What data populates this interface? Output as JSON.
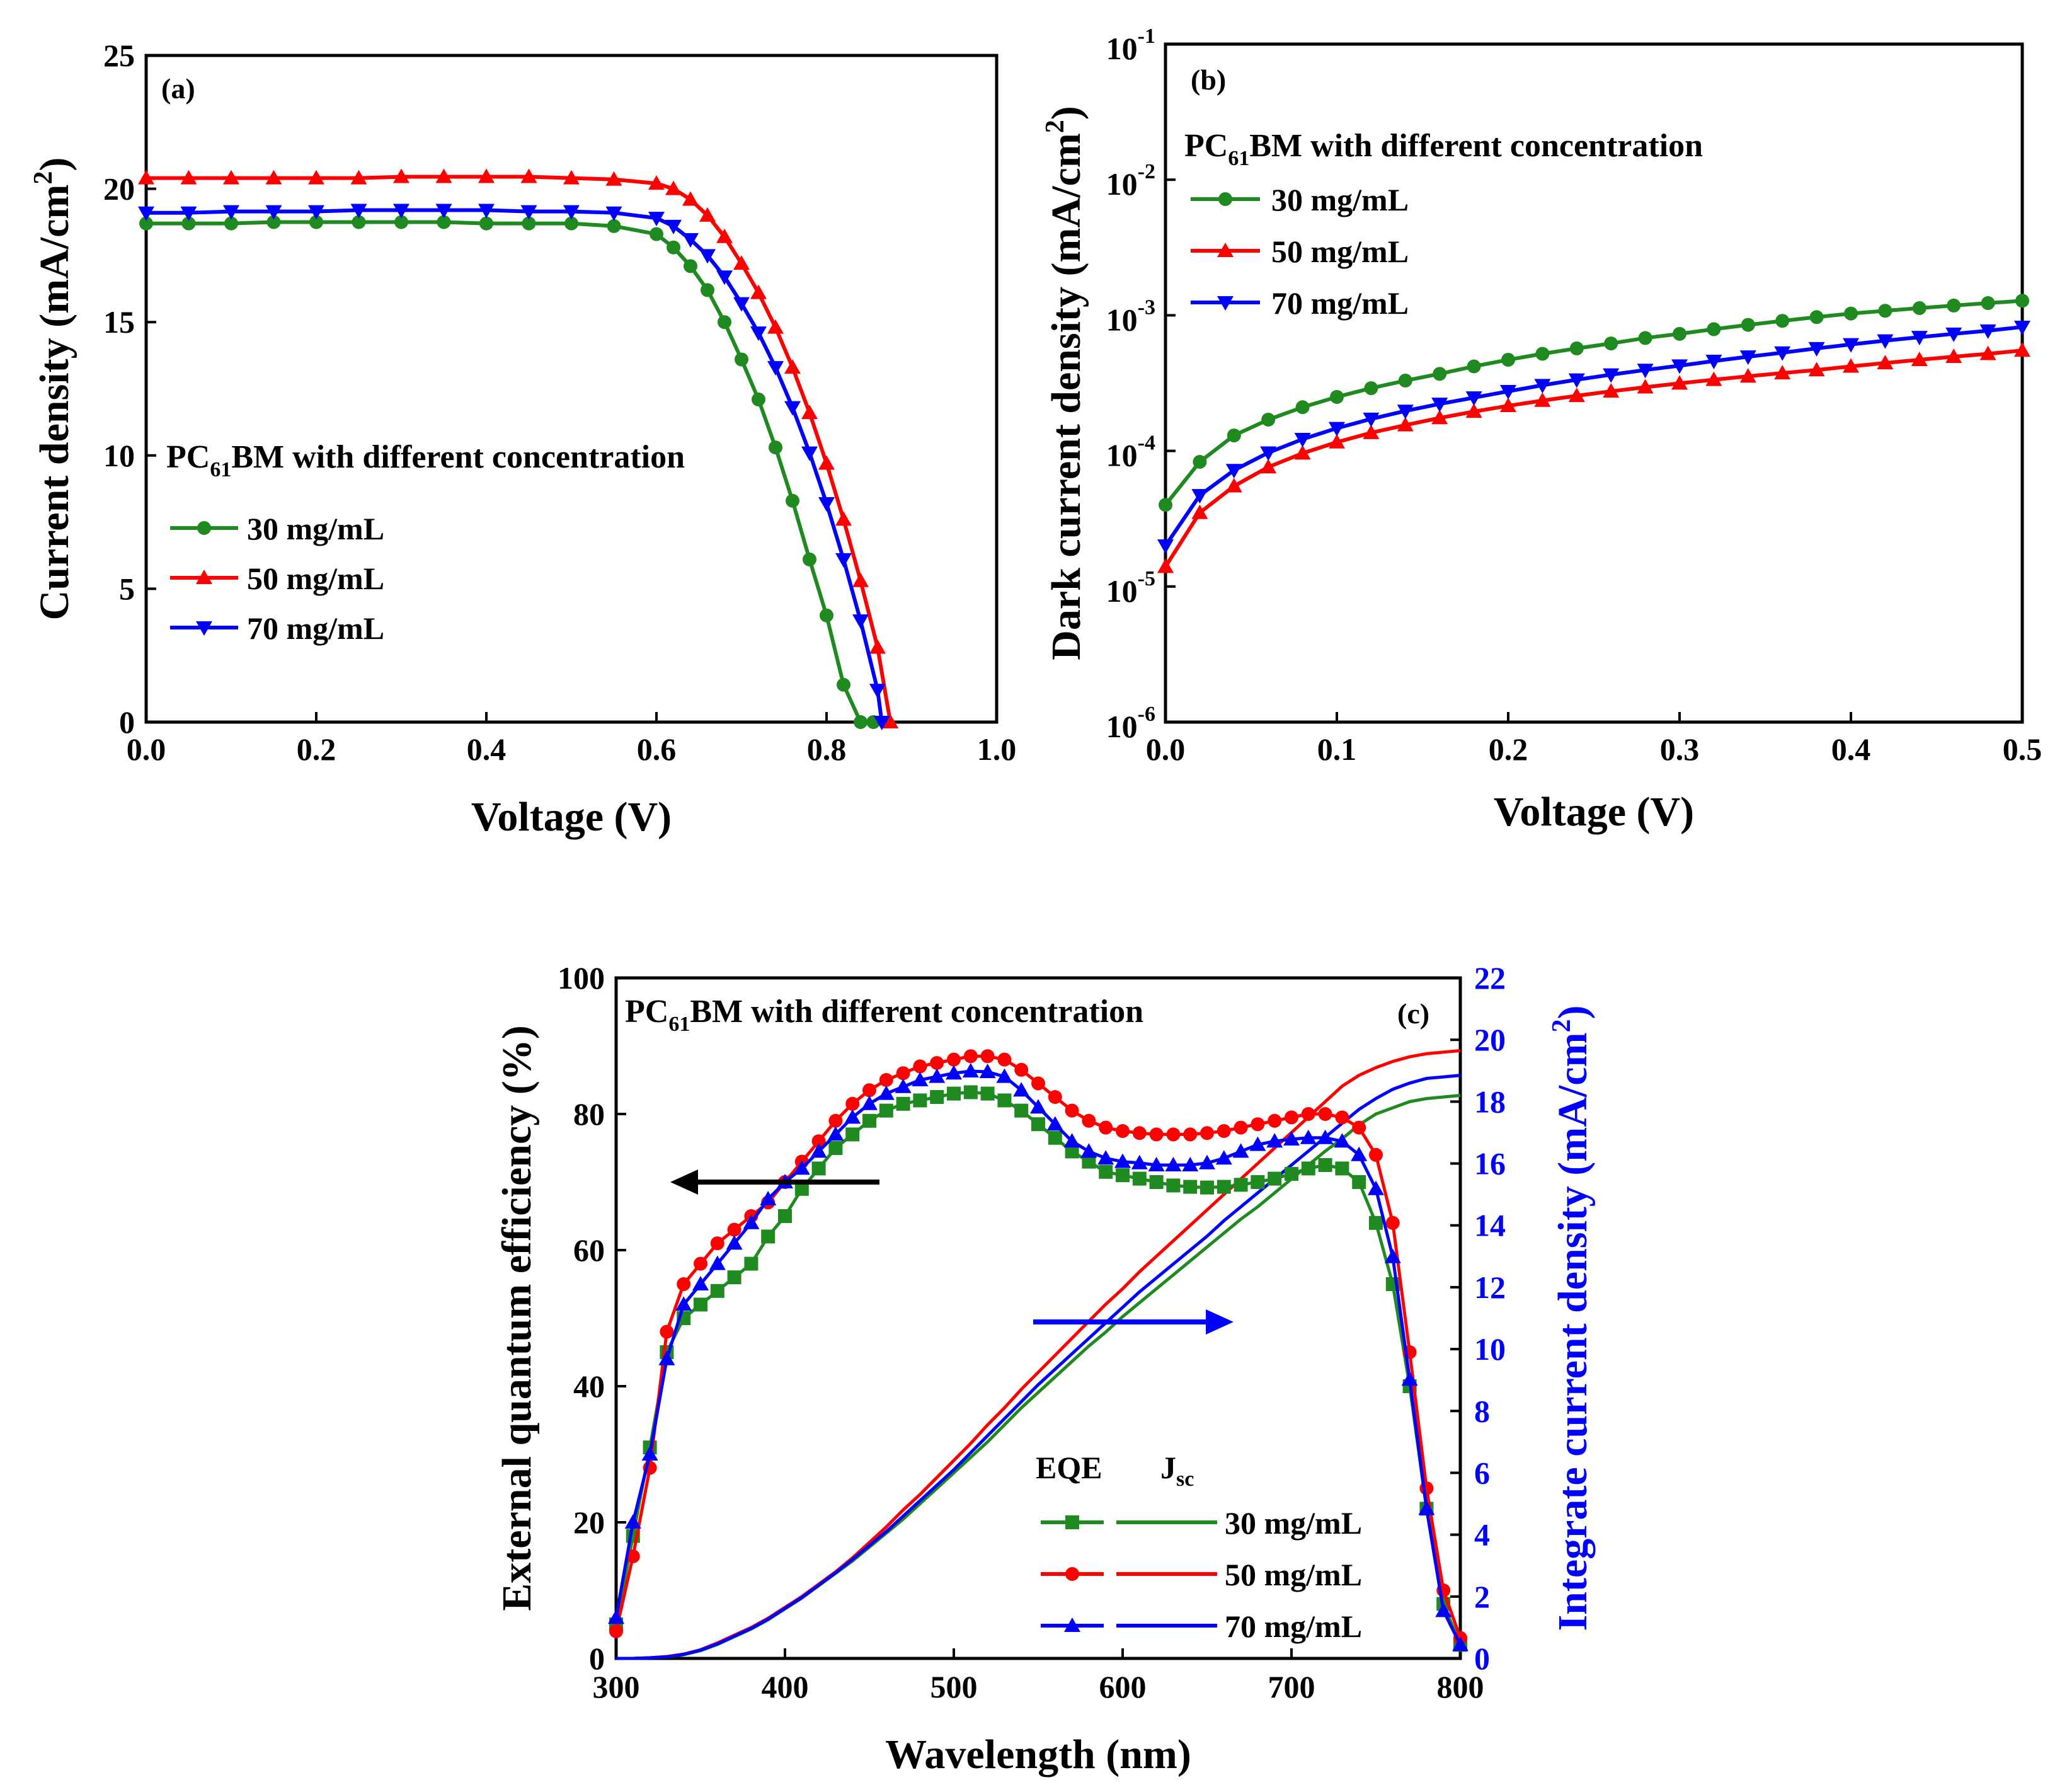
{
  "colors": {
    "c30": "#1f8a1f",
    "c50": "#ff0000",
    "c70": "#0000ff",
    "axis": "#000000"
  },
  "legend_header": {
    "prefix": "PC",
    "subscript": "61",
    "suffix": "BM with different concentration"
  },
  "chart_data": [
    {
      "panel": "(a)",
      "type": "line",
      "title": "",
      "xlabel": "Voltage (V)",
      "ylabel": "Current density (mA/cm",
      "ylabel_sup": "2",
      "ylabel_end": ")",
      "xlim": [
        0,
        1.0
      ],
      "ylim": [
        0,
        25
      ],
      "xticks": [
        "0.0",
        "0.2",
        "0.4",
        "0.6",
        "0.8",
        "1.0"
      ],
      "yticks": [
        "0",
        "5",
        "10",
        "15",
        "20",
        "25"
      ],
      "legend": [
        "30 mg/mL",
        "50 mg/mL",
        "70 mg/mL"
      ],
      "series": [
        {
          "name": "30 mg/mL",
          "marker": "circle",
          "x": [
            0,
            0.05,
            0.1,
            0.15,
            0.2,
            0.25,
            0.3,
            0.35,
            0.4,
            0.45,
            0.5,
            0.55,
            0.6,
            0.62,
            0.64,
            0.66,
            0.68,
            0.7,
            0.72,
            0.74,
            0.76,
            0.78,
            0.8,
            0.82,
            0.84,
            0.855
          ],
          "y": [
            18.7,
            18.7,
            18.7,
            18.75,
            18.75,
            18.75,
            18.75,
            18.75,
            18.7,
            18.7,
            18.7,
            18.6,
            18.3,
            17.8,
            17.1,
            16.2,
            15.0,
            13.6,
            12.1,
            10.3,
            8.3,
            6.1,
            4.0,
            1.4,
            0.0,
            0.0
          ]
        },
        {
          "name": "50 mg/mL",
          "marker": "triangle-up",
          "x": [
            0,
            0.05,
            0.1,
            0.15,
            0.2,
            0.25,
            0.3,
            0.35,
            0.4,
            0.45,
            0.5,
            0.55,
            0.6,
            0.62,
            0.64,
            0.66,
            0.68,
            0.7,
            0.72,
            0.74,
            0.76,
            0.78,
            0.8,
            0.82,
            0.84,
            0.86,
            0.875
          ],
          "y": [
            20.4,
            20.4,
            20.4,
            20.4,
            20.4,
            20.4,
            20.45,
            20.45,
            20.45,
            20.45,
            20.4,
            20.35,
            20.2,
            20.0,
            19.6,
            19.0,
            18.2,
            17.2,
            16.1,
            14.8,
            13.3,
            11.6,
            9.7,
            7.6,
            5.3,
            2.8,
            0.0
          ]
        },
        {
          "name": "70 mg/mL",
          "marker": "triangle-down",
          "x": [
            0,
            0.05,
            0.1,
            0.15,
            0.2,
            0.25,
            0.3,
            0.35,
            0.4,
            0.45,
            0.5,
            0.55,
            0.6,
            0.62,
            0.64,
            0.66,
            0.68,
            0.7,
            0.72,
            0.74,
            0.76,
            0.78,
            0.8,
            0.82,
            0.84,
            0.86,
            0.865
          ],
          "y": [
            19.1,
            19.1,
            19.15,
            19.15,
            19.15,
            19.2,
            19.2,
            19.2,
            19.2,
            19.15,
            19.15,
            19.1,
            18.9,
            18.6,
            18.1,
            17.5,
            16.7,
            15.7,
            14.6,
            13.3,
            11.8,
            10.1,
            8.2,
            6.1,
            3.8,
            1.2,
            0.0
          ]
        }
      ]
    },
    {
      "panel": "(b)",
      "type": "line",
      "title": "",
      "xlabel": "Voltage (V)",
      "ylabel": "Dark current density (mA/cm",
      "ylabel_sup": "2",
      "ylabel_end": ")",
      "xscale": "linear",
      "yscale": "log",
      "xlim": [
        0,
        0.5
      ],
      "ylim_exp": [
        -6,
        -1
      ],
      "xticks": [
        "0.0",
        "0.1",
        "0.2",
        "0.3",
        "0.4",
        "0.5"
      ],
      "yticks_base": "10",
      "yticks_exp": [
        "-6",
        "-5",
        "-4",
        "-3",
        "-2",
        "-1"
      ],
      "legend": [
        "30 mg/mL",
        "50 mg/mL",
        "70 mg/mL"
      ],
      "series": [
        {
          "name": "30 mg/mL",
          "marker": "circle",
          "x": [
            0,
            0.02,
            0.04,
            0.06,
            0.08,
            0.1,
            0.12,
            0.14,
            0.16,
            0.18,
            0.2,
            0.22,
            0.24,
            0.26,
            0.28,
            0.3,
            0.32,
            0.34,
            0.36,
            0.38,
            0.4,
            0.42,
            0.44,
            0.46,
            0.48,
            0.5
          ],
          "y": [
            4e-05,
            8.3e-05,
            0.00013,
            0.00017,
            0.00021,
            0.00025,
            0.00029,
            0.00033,
            0.00037,
            0.00042,
            0.00047,
            0.00052,
            0.00057,
            0.00062,
            0.00068,
            0.00073,
            0.00079,
            0.00085,
            0.00091,
            0.00097,
            0.00103,
            0.00108,
            0.00113,
            0.00118,
            0.00123,
            0.00128
          ]
        },
        {
          "name": "50 mg/mL",
          "marker": "triangle-up",
          "x": [
            0,
            0.02,
            0.04,
            0.06,
            0.08,
            0.1,
            0.12,
            0.14,
            0.16,
            0.18,
            0.2,
            0.22,
            0.24,
            0.26,
            0.28,
            0.3,
            0.32,
            0.34,
            0.36,
            0.38,
            0.4,
            0.42,
            0.44,
            0.46,
            0.48,
            0.5
          ],
          "y": [
            1.4e-05,
            3.5e-05,
            5.5e-05,
            7.6e-05,
            9.6e-05,
            0.000116,
            0.000136,
            0.000155,
            0.000175,
            0.000195,
            0.000215,
            0.000235,
            0.000255,
            0.000275,
            0.000295,
            0.000315,
            0.000335,
            0.000355,
            0.000375,
            0.000395,
            0.00042,
            0.000445,
            0.00047,
            0.000495,
            0.00052,
            0.00055
          ]
        },
        {
          "name": "70 mg/mL",
          "marker": "triangle-down",
          "x": [
            0,
            0.02,
            0.04,
            0.06,
            0.08,
            0.1,
            0.12,
            0.14,
            0.16,
            0.18,
            0.2,
            0.22,
            0.24,
            0.26,
            0.28,
            0.3,
            0.32,
            0.34,
            0.36,
            0.38,
            0.4,
            0.42,
            0.44,
            0.46,
            0.48,
            0.5
          ],
          "y": [
            2e-05,
            4.7e-05,
            7.2e-05,
            9.7e-05,
            0.000122,
            0.000147,
            0.000172,
            0.000197,
            0.000222,
            0.000247,
            0.000275,
            0.000305,
            0.000335,
            0.000365,
            0.000395,
            0.000425,
            0.00046,
            0.000495,
            0.00053,
            0.00057,
            0.00061,
            0.00065,
            0.00069,
            0.00073,
            0.00077,
            0.00082
          ]
        }
      ]
    },
    {
      "panel": "(c)",
      "type": "line",
      "title": "",
      "xlabel": "Wavelength (nm)",
      "ylabel": "External quantum efficiency (%)",
      "y2label": "Integrate current density (mA/cm",
      "y2label_sup": "2",
      "y2label_end": ")",
      "xlim": [
        300,
        800
      ],
      "ylim": [
        0,
        100
      ],
      "y2lim": [
        0,
        22
      ],
      "xticks": [
        "300",
        "400",
        "500",
        "600",
        "700",
        "800"
      ],
      "yticks": [
        "0",
        "20",
        "40",
        "60",
        "80",
        "100"
      ],
      "y2ticks": [
        "0",
        "2",
        "4",
        "6",
        "8",
        "10",
        "12",
        "14",
        "16",
        "18",
        "20",
        "22"
      ],
      "legend_col_eqe": "EQE",
      "legend_col_jsc": "J",
      "legend_col_jsc_sub": "sc",
      "legend": [
        "30 mg/mL",
        "50 mg/mL",
        "70 mg/mL"
      ],
      "x": [
        300,
        310,
        320,
        330,
        340,
        350,
        360,
        370,
        380,
        390,
        400,
        410,
        420,
        430,
        440,
        450,
        460,
        470,
        480,
        490,
        500,
        510,
        520,
        530,
        540,
        550,
        560,
        570,
        580,
        590,
        600,
        610,
        620,
        630,
        640,
        650,
        660,
        670,
        680,
        690,
        700,
        710,
        720,
        730,
        740,
        750,
        760,
        770,
        780,
        790,
        800
      ],
      "series": [
        {
          "name": "30 mg/mL EQE",
          "axis": "left",
          "marker": "square",
          "y": [
            5,
            18,
            31,
            45,
            50,
            52,
            54,
            56,
            58,
            62,
            65,
            69,
            72,
            75,
            77,
            79,
            80.5,
            81.5,
            82,
            82.5,
            83,
            83.2,
            83,
            82,
            80.5,
            78.5,
            76.5,
            74.5,
            73,
            71.5,
            71,
            70.5,
            70,
            69.5,
            69.3,
            69.2,
            69.3,
            69.6,
            70,
            70.5,
            71.2,
            72,
            72.5,
            72,
            70,
            64,
            55,
            40,
            22,
            8,
            2
          ]
        },
        {
          "name": "50 mg/mL EQE",
          "axis": "left",
          "marker": "circle",
          "y": [
            4,
            15,
            28,
            48,
            55,
            58,
            61,
            63,
            65,
            67,
            70,
            73,
            76,
            79,
            81.5,
            83.5,
            85,
            86,
            87,
            87.5,
            88,
            88.5,
            88.5,
            88,
            86.5,
            84.5,
            82.5,
            80.5,
            79,
            78,
            77.5,
            77.2,
            77,
            77,
            77,
            77.2,
            77.5,
            78,
            78.5,
            79,
            79.5,
            80,
            80,
            79.5,
            78,
            74,
            64,
            45,
            25,
            10,
            3
          ]
        },
        {
          "name": "70 mg/mL EQE",
          "axis": "left",
          "marker": "triangle-up",
          "y": [
            6,
            20,
            30,
            44,
            52,
            55,
            58,
            61,
            64,
            67.5,
            70,
            72,
            74.5,
            77,
            79.5,
            81.5,
            83,
            84,
            85,
            85.5,
            86,
            86.3,
            86.2,
            85.5,
            83.5,
            81,
            78.5,
            76,
            74.5,
            73.5,
            73,
            72.8,
            72.5,
            72.5,
            72.5,
            72.8,
            73.5,
            74.5,
            75.5,
            76,
            76.3,
            76.5,
            76.5,
            76,
            74,
            69,
            59,
            41,
            22,
            7,
            2
          ]
        },
        {
          "name": "30 mg/mL Jsc",
          "axis": "right",
          "marker": "none",
          "y": [
            0,
            0,
            0.02,
            0.05,
            0.12,
            0.25,
            0.45,
            0.7,
            0.95,
            1.25,
            1.6,
            1.95,
            2.35,
            2.75,
            3.15,
            3.6,
            4.05,
            4.5,
            5.0,
            5.5,
            6.0,
            6.5,
            7.0,
            7.55,
            8.1,
            8.6,
            9.1,
            9.6,
            10.1,
            10.55,
            11.05,
            11.5,
            11.95,
            12.4,
            12.85,
            13.3,
            13.75,
            14.2,
            14.6,
            15.05,
            15.5,
            15.95,
            16.4,
            16.8,
            17.25,
            17.6,
            17.8,
            18.0,
            18.1,
            18.15,
            18.2
          ]
        },
        {
          "name": "50 mg/mL Jsc",
          "axis": "right",
          "marker": "none",
          "y": [
            0,
            0,
            0.02,
            0.06,
            0.14,
            0.28,
            0.5,
            0.75,
            1.0,
            1.3,
            1.65,
            2.0,
            2.4,
            2.8,
            3.25,
            3.75,
            4.25,
            4.8,
            5.3,
            5.85,
            6.4,
            6.95,
            7.55,
            8.1,
            8.7,
            9.25,
            9.8,
            10.35,
            10.9,
            11.45,
            11.95,
            12.5,
            13.0,
            13.5,
            14.0,
            14.5,
            15.0,
            15.5,
            16.0,
            16.5,
            17.0,
            17.5,
            18.0,
            18.5,
            18.85,
            19.1,
            19.3,
            19.45,
            19.55,
            19.6,
            19.65
          ]
        },
        {
          "name": "70 mg/mL Jsc",
          "axis": "right",
          "marker": "none",
          "y": [
            0,
            0,
            0.02,
            0.05,
            0.13,
            0.27,
            0.47,
            0.72,
            0.97,
            1.27,
            1.62,
            1.97,
            2.37,
            2.77,
            3.2,
            3.65,
            4.1,
            4.6,
            5.1,
            5.6,
            6.1,
            6.65,
            7.2,
            7.75,
            8.3,
            8.85,
            9.35,
            9.85,
            10.35,
            10.85,
            11.35,
            11.85,
            12.3,
            12.75,
            13.2,
            13.65,
            14.15,
            14.6,
            15.05,
            15.5,
            15.95,
            16.4,
            16.85,
            17.3,
            17.75,
            18.1,
            18.4,
            18.6,
            18.75,
            18.8,
            18.85
          ]
        }
      ]
    }
  ]
}
